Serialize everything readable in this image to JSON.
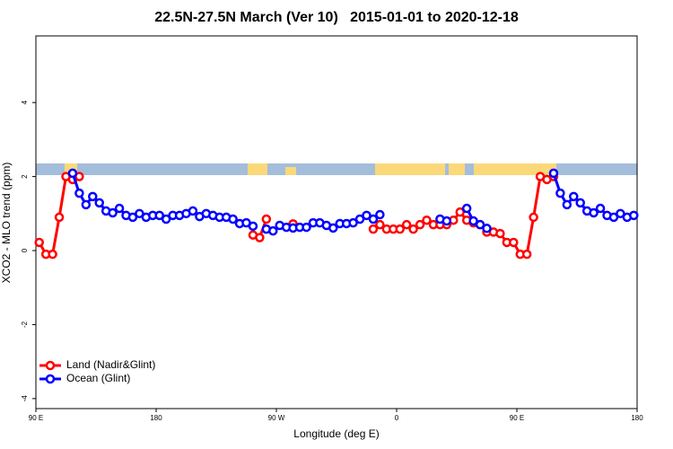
{
  "chart_data": {
    "type": "line",
    "title": "22.5N-27.5N March (Ver 10)   2015-01-01 to 2020-12-18",
    "x_label": "Longitude (deg E)",
    "y_label": "XCO2 - MLO trend (ppm)",
    "xlim": [
      90,
      540
    ],
    "xticks": [
      {
        "value": 90,
        "label": "90 E"
      },
      180,
      {
        "value": 270,
        "label": "90 W"
      },
      {
        "value": 360,
        "label": "0"
      },
      {
        "value": 450,
        "label": "90 E"
      },
      {
        "value": 540,
        "label": "180"
      }
    ],
    "ylim": [
      -4.27,
      5.8
    ],
    "yticks": [
      -4,
      -2,
      0,
      2,
      4
    ],
    "legend": "bottom-left",
    "x": [
      92.5,
      97.5,
      102.5,
      107.5,
      112.5,
      117.5,
      122.5,
      127.5,
      132.5,
      137.5,
      142.5,
      147.5,
      152.5,
      157.5,
      162.5,
      167.5,
      172.5,
      177.5,
      182.5,
      187.5,
      192.5,
      197.5,
      202.5,
      207.5,
      212.5,
      217.5,
      222.5,
      227.5,
      232.5,
      237.5,
      242.5,
      247.5,
      252.5,
      257.5,
      262.5,
      267.5,
      272.5,
      277.5,
      282.5,
      287.5,
      292.5,
      297.5,
      302.5,
      307.5,
      312.5,
      317.5,
      322.5,
      327.5,
      332.5,
      337.5,
      342.5,
      347.5,
      352.5,
      357.5,
      362.5,
      367.5,
      372.5,
      377.5,
      382.5,
      387.5,
      392.5,
      397.5,
      402.5,
      407.5,
      412.5,
      417.5,
      422.5,
      427.5,
      432.5,
      437.5,
      442.5,
      447.5,
      452.5,
      457.5,
      462.5,
      467.5,
      472.5,
      477.5,
      482.5,
      487.5,
      492.5,
      497.5,
      502.5,
      507.5,
      512.5,
      517.5,
      522.5,
      527.5,
      532.5,
      537.5
    ],
    "series": [
      {
        "name": "Land (Nadir&Glint)",
        "color": "#ff0000",
        "values": [
          0.22,
          -0.1,
          -0.1,
          0.9,
          2.0,
          1.92,
          2.0,
          null,
          null,
          null,
          null,
          null,
          null,
          null,
          null,
          null,
          null,
          null,
          null,
          null,
          null,
          null,
          null,
          null,
          null,
          null,
          null,
          null,
          null,
          null,
          null,
          null,
          0.42,
          0.35,
          0.85,
          null,
          null,
          null,
          0.72,
          null,
          null,
          null,
          null,
          null,
          null,
          null,
          null,
          null,
          null,
          null,
          0.58,
          0.7,
          0.58,
          0.58,
          0.58,
          0.7,
          0.58,
          0.7,
          0.82,
          0.7,
          0.7,
          0.7,
          0.82,
          1.04,
          0.82,
          0.75,
          0.7,
          0.5,
          0.5,
          0.46,
          0.22,
          0.22,
          -0.1,
          -0.1,
          0.9,
          2.0,
          1.92,
          2.0,
          null,
          null,
          null,
          null,
          null,
          null,
          null,
          null,
          null,
          null,
          null,
          null
        ]
      },
      {
        "name": "Ocean (Glint)",
        "color": "#0000ff",
        "values": [
          null,
          null,
          null,
          null,
          null,
          2.09,
          1.55,
          1.24,
          1.46,
          1.29,
          1.07,
          1.02,
          1.14,
          0.95,
          0.9,
          1.0,
          0.9,
          0.95,
          0.95,
          0.85,
          0.95,
          0.95,
          1.0,
          1.07,
          0.92,
          1.0,
          0.95,
          0.9,
          0.9,
          0.85,
          0.73,
          0.75,
          0.66,
          null,
          0.58,
          0.53,
          0.68,
          0.63,
          0.61,
          0.63,
          0.63,
          0.75,
          0.75,
          0.68,
          0.61,
          0.73,
          0.73,
          0.75,
          0.85,
          0.95,
          0.85,
          0.97,
          null,
          null,
          null,
          null,
          null,
          null,
          null,
          null,
          0.85,
          0.8,
          null,
          null,
          1.14,
          0.8,
          0.7,
          0.6,
          null,
          null,
          null,
          null,
          null,
          null,
          null,
          null,
          null,
          2.09,
          1.55,
          1.24,
          1.46,
          1.29,
          1.07,
          1.02,
          1.14,
          0.95,
          0.9,
          1.0,
          0.9,
          0.95
        ]
      }
    ]
  }
}
